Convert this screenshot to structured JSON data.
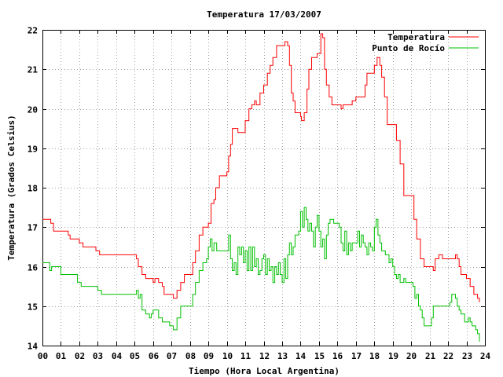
{
  "chart_data": {
    "type": "line",
    "title": "Temperatura 17/03/2007",
    "xlabel": "Tiempo (Hora Local Argentina)",
    "ylabel": "Temperatura (Grados Celsius)",
    "xlim": [
      0,
      24
    ],
    "ylim": [
      14,
      22
    ],
    "x_ticks": [
      "00",
      "01",
      "02",
      "03",
      "04",
      "05",
      "06",
      "07",
      "08",
      "09",
      "10",
      "11",
      "12",
      "13",
      "14",
      "15",
      "16",
      "17",
      "18",
      "19",
      "20",
      "21",
      "22",
      "23",
      "24"
    ],
    "y_ticks": [
      "14",
      "15",
      "16",
      "17",
      "18",
      "19",
      "20",
      "21",
      "22"
    ],
    "grid": true,
    "legend_position": "top-right",
    "series": [
      {
        "name": "Temperatura",
        "color": "#ff0000",
        "points": [
          [
            0.0,
            17.2
          ],
          [
            0.35,
            17.2
          ],
          [
            0.45,
            17.1
          ],
          [
            0.6,
            16.9
          ],
          [
            1.0,
            16.9
          ],
          [
            1.4,
            16.8
          ],
          [
            1.5,
            16.7
          ],
          [
            1.7,
            16.7
          ],
          [
            2.0,
            16.6
          ],
          [
            2.2,
            16.5
          ],
          [
            2.5,
            16.5
          ],
          [
            2.9,
            16.4
          ],
          [
            3.1,
            16.3
          ],
          [
            3.5,
            16.3
          ],
          [
            4.0,
            16.3
          ],
          [
            4.5,
            16.3
          ],
          [
            4.9,
            16.3
          ],
          [
            5.1,
            16.2
          ],
          [
            5.2,
            16.0
          ],
          [
            5.4,
            15.8
          ],
          [
            5.6,
            15.7
          ],
          [
            5.9,
            15.7
          ],
          [
            6.0,
            15.6
          ],
          [
            6.1,
            15.7
          ],
          [
            6.3,
            15.6
          ],
          [
            6.5,
            15.5
          ],
          [
            6.6,
            15.3
          ],
          [
            7.0,
            15.3
          ],
          [
            7.1,
            15.2
          ],
          [
            7.3,
            15.4
          ],
          [
            7.5,
            15.6
          ],
          [
            7.7,
            15.8
          ],
          [
            8.0,
            15.8
          ],
          [
            8.15,
            16.1
          ],
          [
            8.3,
            16.4
          ],
          [
            8.5,
            16.8
          ],
          [
            8.7,
            17.0
          ],
          [
            9.0,
            17.1
          ],
          [
            9.15,
            17.6
          ],
          [
            9.3,
            17.7
          ],
          [
            9.4,
            18.0
          ],
          [
            9.6,
            18.3
          ],
          [
            9.8,
            18.3
          ],
          [
            10.0,
            18.4
          ],
          [
            10.1,
            18.8
          ],
          [
            10.2,
            19.1
          ],
          [
            10.3,
            19.5
          ],
          [
            10.4,
            19.5
          ],
          [
            10.6,
            19.4
          ],
          [
            10.9,
            19.4
          ],
          [
            11.0,
            19.7
          ],
          [
            11.2,
            20.0
          ],
          [
            11.35,
            20.1
          ],
          [
            11.5,
            20.2
          ],
          [
            11.6,
            20.1
          ],
          [
            11.8,
            20.4
          ],
          [
            12.0,
            20.6
          ],
          [
            12.2,
            20.9
          ],
          [
            12.35,
            21.1
          ],
          [
            12.5,
            21.3
          ],
          [
            12.7,
            21.6
          ],
          [
            13.0,
            21.6
          ],
          [
            13.15,
            21.7
          ],
          [
            13.3,
            21.6
          ],
          [
            13.4,
            21.1
          ],
          [
            13.5,
            20.4
          ],
          [
            13.6,
            20.2
          ],
          [
            13.7,
            19.9
          ],
          [
            13.9,
            19.9
          ],
          [
            14.0,
            19.8
          ],
          [
            14.05,
            19.7
          ],
          [
            14.2,
            19.9
          ],
          [
            14.35,
            20.5
          ],
          [
            14.45,
            21.0
          ],
          [
            14.6,
            21.3
          ],
          [
            14.9,
            21.4
          ],
          [
            15.1,
            21.9
          ],
          [
            15.2,
            21.8
          ],
          [
            15.3,
            21.0
          ],
          [
            15.4,
            20.6
          ],
          [
            15.55,
            20.3
          ],
          [
            15.7,
            20.1
          ],
          [
            15.9,
            20.1
          ],
          [
            16.1,
            20.1
          ],
          [
            16.2,
            20.0
          ],
          [
            16.3,
            20.1
          ],
          [
            16.6,
            20.1
          ],
          [
            16.8,
            20.2
          ],
          [
            17.0,
            20.3
          ],
          [
            17.3,
            20.3
          ],
          [
            17.5,
            20.6
          ],
          [
            17.6,
            20.9
          ],
          [
            17.8,
            20.9
          ],
          [
            18.0,
            21.1
          ],
          [
            18.15,
            21.3
          ],
          [
            18.3,
            21.1
          ],
          [
            18.4,
            20.8
          ],
          [
            18.55,
            20.3
          ],
          [
            18.7,
            19.6
          ],
          [
            19.0,
            19.6
          ],
          [
            19.2,
            19.2
          ],
          [
            19.4,
            18.6
          ],
          [
            19.6,
            17.8
          ],
          [
            20.0,
            17.8
          ],
          [
            20.15,
            17.2
          ],
          [
            20.3,
            16.7
          ],
          [
            20.5,
            16.2
          ],
          [
            20.7,
            16.0
          ],
          [
            21.0,
            16.0
          ],
          [
            21.2,
            15.9
          ],
          [
            21.3,
            16.2
          ],
          [
            21.5,
            16.3
          ],
          [
            21.7,
            16.2
          ],
          [
            22.0,
            16.2
          ],
          [
            22.2,
            16.2
          ],
          [
            22.4,
            16.3
          ],
          [
            22.5,
            16.2
          ],
          [
            22.6,
            16.0
          ],
          [
            22.7,
            15.8
          ],
          [
            23.0,
            15.7
          ],
          [
            23.2,
            15.5
          ],
          [
            23.4,
            15.3
          ],
          [
            23.6,
            15.2
          ],
          [
            23.7,
            15.1
          ]
        ]
      },
      {
        "name": "Punto de Rocío",
        "color": "#00c000",
        "points": [
          [
            0.0,
            16.1
          ],
          [
            0.3,
            16.1
          ],
          [
            0.4,
            15.9
          ],
          [
            0.5,
            16.0
          ],
          [
            0.9,
            16.0
          ],
          [
            1.0,
            15.8
          ],
          [
            1.5,
            15.8
          ],
          [
            1.9,
            15.6
          ],
          [
            2.1,
            15.5
          ],
          [
            2.5,
            15.5
          ],
          [
            3.0,
            15.4
          ],
          [
            3.2,
            15.3
          ],
          [
            3.6,
            15.3
          ],
          [
            4.0,
            15.3
          ],
          [
            4.5,
            15.3
          ],
          [
            5.0,
            15.3
          ],
          [
            5.1,
            15.4
          ],
          [
            5.2,
            15.2
          ],
          [
            5.3,
            15.3
          ],
          [
            5.4,
            14.9
          ],
          [
            5.6,
            14.8
          ],
          [
            5.8,
            14.7
          ],
          [
            5.9,
            14.8
          ],
          [
            6.0,
            14.9
          ],
          [
            6.2,
            14.9
          ],
          [
            6.3,
            14.7
          ],
          [
            6.5,
            14.6
          ],
          [
            6.8,
            14.6
          ],
          [
            6.9,
            14.5
          ],
          [
            7.0,
            14.5
          ],
          [
            7.1,
            14.4
          ],
          [
            7.3,
            14.7
          ],
          [
            7.5,
            15.0
          ],
          [
            7.8,
            15.0
          ],
          [
            8.0,
            15.0
          ],
          [
            8.15,
            15.3
          ],
          [
            8.3,
            15.6
          ],
          [
            8.5,
            15.9
          ],
          [
            8.7,
            16.1
          ],
          [
            8.9,
            16.2
          ],
          [
            9.0,
            16.5
          ],
          [
            9.1,
            16.7
          ],
          [
            9.2,
            16.4
          ],
          [
            9.3,
            16.6
          ],
          [
            9.45,
            16.4
          ],
          [
            10.0,
            16.4
          ],
          [
            10.1,
            16.8
          ],
          [
            10.2,
            16.2
          ],
          [
            10.3,
            15.9
          ],
          [
            10.4,
            16.1
          ],
          [
            10.5,
            15.8
          ],
          [
            10.6,
            16.5
          ],
          [
            10.7,
            16.3
          ],
          [
            10.8,
            16.5
          ],
          [
            10.9,
            16.1
          ],
          [
            11.0,
            16.4
          ],
          [
            11.1,
            15.9
          ],
          [
            11.2,
            16.5
          ],
          [
            11.3,
            15.9
          ],
          [
            11.4,
            16.5
          ],
          [
            11.5,
            16.0
          ],
          [
            11.6,
            16.2
          ],
          [
            11.7,
            15.8
          ],
          [
            11.8,
            15.9
          ],
          [
            11.9,
            16.2
          ],
          [
            12.0,
            16.3
          ],
          [
            12.1,
            15.8
          ],
          [
            12.2,
            16.2
          ],
          [
            12.3,
            15.9
          ],
          [
            12.4,
            16.0
          ],
          [
            12.5,
            15.6
          ],
          [
            12.6,
            16.0
          ],
          [
            12.7,
            15.8
          ],
          [
            12.8,
            16.1
          ],
          [
            12.9,
            15.8
          ],
          [
            13.0,
            15.6
          ],
          [
            13.1,
            16.2
          ],
          [
            13.2,
            15.7
          ],
          [
            13.3,
            16.3
          ],
          [
            13.4,
            16.6
          ],
          [
            13.5,
            16.3
          ],
          [
            13.6,
            16.5
          ],
          [
            13.7,
            16.8
          ],
          [
            13.8,
            16.8
          ],
          [
            13.9,
            16.9
          ],
          [
            14.0,
            17.4
          ],
          [
            14.1,
            17.0
          ],
          [
            14.2,
            17.5
          ],
          [
            14.3,
            17.2
          ],
          [
            14.4,
            16.9
          ],
          [
            14.5,
            17.1
          ],
          [
            14.6,
            16.9
          ],
          [
            14.7,
            16.5
          ],
          [
            14.8,
            17.0
          ],
          [
            14.9,
            17.3
          ],
          [
            15.0,
            16.9
          ],
          [
            15.1,
            16.5
          ],
          [
            15.2,
            16.7
          ],
          [
            15.3,
            16.2
          ],
          [
            15.4,
            16.8
          ],
          [
            15.5,
            17.1
          ],
          [
            15.6,
            17.2
          ],
          [
            15.8,
            17.1
          ],
          [
            16.0,
            17.1
          ],
          [
            16.1,
            17.0
          ],
          [
            16.2,
            16.6
          ],
          [
            16.3,
            16.4
          ],
          [
            16.4,
            16.9
          ],
          [
            16.5,
            16.3
          ],
          [
            16.6,
            16.6
          ],
          [
            16.7,
            16.4
          ],
          [
            16.8,
            16.6
          ],
          [
            17.0,
            16.6
          ],
          [
            17.1,
            16.9
          ],
          [
            17.2,
            16.5
          ],
          [
            17.3,
            16.8
          ],
          [
            17.4,
            16.6
          ],
          [
            17.5,
            16.5
          ],
          [
            17.6,
            16.3
          ],
          [
            17.7,
            16.6
          ],
          [
            17.8,
            16.5
          ],
          [
            17.9,
            16.4
          ],
          [
            18.0,
            17.0
          ],
          [
            18.1,
            17.2
          ],
          [
            18.2,
            16.8
          ],
          [
            18.3,
            16.6
          ],
          [
            18.4,
            16.4
          ],
          [
            18.5,
            16.4
          ],
          [
            18.6,
            16.3
          ],
          [
            18.7,
            16.3
          ],
          [
            18.8,
            16.1
          ],
          [
            18.9,
            16.2
          ],
          [
            19.0,
            16.0
          ],
          [
            19.1,
            15.8
          ],
          [
            19.2,
            15.7
          ],
          [
            19.3,
            15.8
          ],
          [
            19.4,
            15.6
          ],
          [
            19.5,
            15.6
          ],
          [
            19.6,
            15.7
          ],
          [
            19.7,
            15.6
          ],
          [
            19.9,
            15.6
          ],
          [
            20.0,
            15.6
          ],
          [
            20.1,
            15.5
          ],
          [
            20.2,
            15.2
          ],
          [
            20.3,
            15.3
          ],
          [
            20.4,
            15.0
          ],
          [
            20.5,
            14.9
          ],
          [
            20.6,
            14.7
          ],
          [
            20.7,
            14.5
          ],
          [
            21.0,
            14.5
          ],
          [
            21.1,
            14.7
          ],
          [
            21.2,
            15.0
          ],
          [
            21.4,
            15.0
          ],
          [
            21.6,
            15.0
          ],
          [
            21.8,
            15.0
          ],
          [
            22.0,
            15.0
          ],
          [
            22.1,
            15.1
          ],
          [
            22.2,
            15.3
          ],
          [
            22.3,
            15.3
          ],
          [
            22.4,
            15.2
          ],
          [
            22.5,
            15.0
          ],
          [
            22.6,
            14.9
          ],
          [
            22.7,
            14.8
          ],
          [
            22.8,
            14.8
          ],
          [
            22.9,
            14.6
          ],
          [
            23.0,
            14.6
          ],
          [
            23.1,
            14.7
          ],
          [
            23.2,
            14.6
          ],
          [
            23.3,
            14.5
          ],
          [
            23.4,
            14.5
          ],
          [
            23.5,
            14.4
          ],
          [
            23.6,
            14.3
          ],
          [
            23.7,
            14.1
          ]
        ]
      }
    ]
  }
}
